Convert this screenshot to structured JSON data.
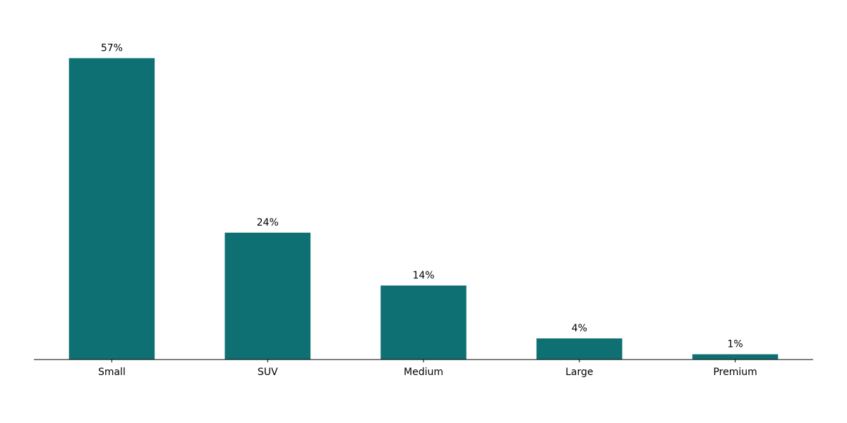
{
  "chart_data": {
    "type": "bar",
    "title": "",
    "xlabel": "",
    "ylabel": "",
    "categories": [
      "Small",
      "SUV",
      "Medium",
      "Large",
      "Premium"
    ],
    "values": [
      57,
      24,
      14,
      4,
      1
    ],
    "data_labels": [
      "57%",
      "24%",
      "14%",
      "4%",
      "1%"
    ],
    "ylim": [
      0,
      60
    ],
    "grid": false,
    "y_axis_visible": false,
    "bar_color": "#0e7073"
  }
}
